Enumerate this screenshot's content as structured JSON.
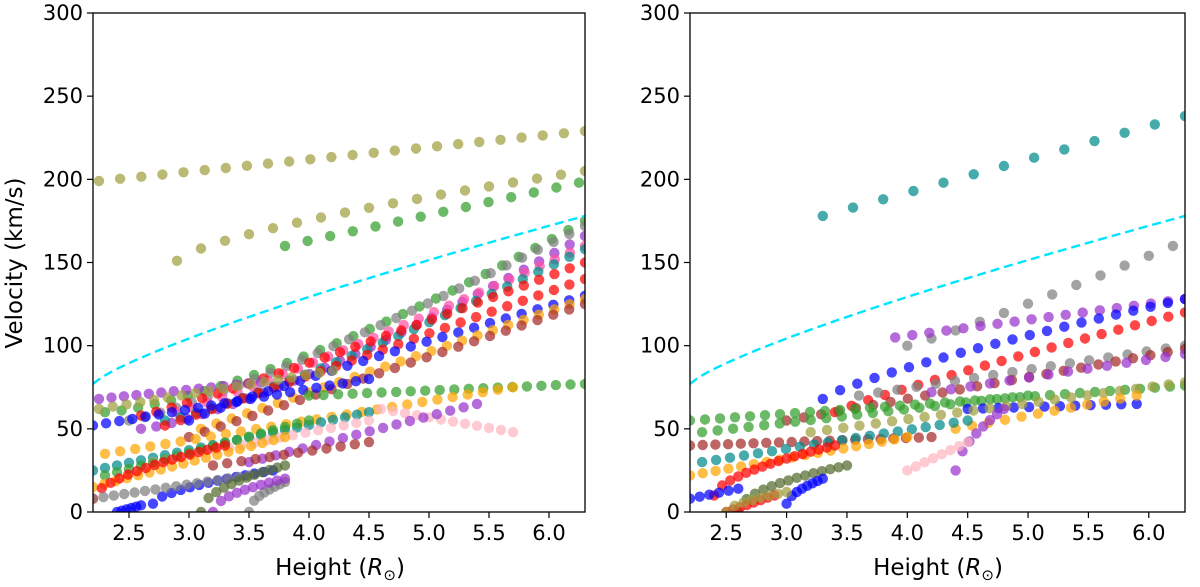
{
  "chart_data": [
    {
      "type": "scatter",
      "panel": "left",
      "xlabel_main": "Height (",
      "xlabel_symbol": "R",
      "xlabel_sub": "⊙",
      "xlabel_close": ")",
      "ylabel": "Velocity (km/s)",
      "xlim": [
        2.2,
        6.3
      ],
      "ylim": [
        0,
        300
      ],
      "xticks": [
        "2.5",
        "3.0",
        "3.5",
        "4.0",
        "4.5",
        "5.0",
        "5.5",
        "6.0"
      ],
      "xtick_values": [
        2.5,
        3.0,
        3.5,
        4.0,
        4.5,
        5.0,
        5.5,
        6.0
      ],
      "yticks": [
        "0",
        "50",
        "100",
        "150",
        "200",
        "250",
        "300"
      ],
      "ytick_values": [
        0,
        50,
        100,
        150,
        200,
        250,
        300
      ],
      "reference_curve": {
        "style": "dashed",
        "color": "#00e5ff",
        "x0": 2.2,
        "x1": 6.3,
        "y0": 77,
        "y1": 178,
        "exponent": 0.8
      },
      "series": [
        {
          "color": "#a0a040",
          "x0": 2.25,
          "x1": 6.3,
          "y0": 199,
          "y1": 229,
          "exponent": 1,
          "n": 24
        },
        {
          "color": "#a0a040",
          "x0": 2.9,
          "x1": 6.3,
          "y0": 151,
          "y1": 205,
          "exponent": 0.7,
          "n": 18
        },
        {
          "color": "#33a02c",
          "x0": 3.8,
          "x1": 6.25,
          "y0": 160,
          "y1": 198,
          "exponent": 1,
          "n": 14
        },
        {
          "color": "#33a02c",
          "x0": 2.3,
          "x1": 6.3,
          "y0": 60,
          "y1": 175,
          "exponent": 1.4,
          "n": 30
        },
        {
          "color": "#808080",
          "x0": 2.5,
          "x1": 6.3,
          "y0": 55,
          "y1": 172,
          "exponent": 1.2,
          "n": 30
        },
        {
          "color": "#9932cc",
          "x0": 2.6,
          "x1": 6.3,
          "y0": 50,
          "y1": 166,
          "exponent": 1.3,
          "n": 30
        },
        {
          "color": "#ff4da6",
          "x0": 2.9,
          "x1": 6.3,
          "y0": 60,
          "y1": 160,
          "exponent": 1.1,
          "n": 28
        },
        {
          "color": "#008b8b",
          "x0": 2.8,
          "x1": 6.3,
          "y0": 55,
          "y1": 158,
          "exponent": 1.2,
          "n": 28
        },
        {
          "color": "#ff0000",
          "x0": 2.6,
          "x1": 6.3,
          "y0": 58,
          "y1": 150,
          "exponent": 1.1,
          "n": 30
        },
        {
          "color": "#ff0000",
          "x0": 2.8,
          "x1": 6.3,
          "y0": 52,
          "y1": 140,
          "exponent": 1.0,
          "n": 28
        },
        {
          "color": "#0000ff",
          "x0": 3.0,
          "x1": 6.3,
          "y0": 55,
          "y1": 130,
          "exponent": 0.9,
          "n": 26
        },
        {
          "color": "#ffa500",
          "x0": 3.1,
          "x1": 6.3,
          "y0": 50,
          "y1": 128,
          "exponent": 1.0,
          "n": 26
        },
        {
          "color": "#a52a2a",
          "x0": 3.0,
          "x1": 6.3,
          "y0": 45,
          "y1": 125,
          "exponent": 1.0,
          "n": 26
        },
        {
          "color": "#9932cc",
          "x0": 2.25,
          "x1": 3.6,
          "y0": 68,
          "y1": 78,
          "exponent": 1,
          "n": 14
        },
        {
          "color": "#0000ff",
          "x0": 2.2,
          "x1": 4.5,
          "y0": 52,
          "y1": 80,
          "exponent": 1,
          "n": 22
        },
        {
          "color": "#a0a040",
          "x0": 2.25,
          "x1": 4.2,
          "y0": 62,
          "y1": 85,
          "exponent": 1,
          "n": 18
        },
        {
          "color": "#33a02c",
          "x0": 4.0,
          "x1": 6.3,
          "y0": 70,
          "y1": 77,
          "exponent": 1,
          "n": 20
        },
        {
          "color": "#ffa500",
          "x0": 2.3,
          "x1": 5.7,
          "y0": 35,
          "y1": 75,
          "exponent": 1,
          "n": 28
        },
        {
          "color": "#ffb6c1",
          "x0": 4.6,
          "x1": 5.7,
          "y0": 62,
          "y1": 48,
          "exponent": 1,
          "n": 12
        },
        {
          "color": "#9932cc",
          "x0": 3.5,
          "x1": 5.4,
          "y0": 30,
          "y1": 65,
          "exponent": 1,
          "n": 18
        },
        {
          "color": "#008b8b",
          "x0": 2.2,
          "x1": 4.5,
          "y0": 25,
          "y1": 60,
          "exponent": 1,
          "n": 24
        },
        {
          "color": "#ffb6c1",
          "x0": 2.7,
          "x1": 4.5,
          "y0": 30,
          "y1": 55,
          "exponent": 1,
          "n": 18
        },
        {
          "color": "#a52a2a",
          "x0": 3.2,
          "x1": 4.5,
          "y0": 28,
          "y1": 42,
          "exponent": 1,
          "n": 12
        },
        {
          "color": "#33a02c",
          "x0": 2.3,
          "x1": 4.0,
          "y0": 22,
          "y1": 55,
          "exponent": 1,
          "n": 18
        },
        {
          "color": "#ffa500",
          "x0": 2.2,
          "x1": 3.8,
          "y0": 15,
          "y1": 45,
          "exponent": 1,
          "n": 18
        },
        {
          "color": "#ff0000",
          "x0": 2.2,
          "x1": 3.3,
          "y0": 8,
          "y1": 40,
          "exponent": 0.6,
          "n": 16
        },
        {
          "color": "#0000ff",
          "x0": 2.7,
          "x1": 3.7,
          "y0": 5,
          "y1": 25,
          "exponent": 0.6,
          "n": 14
        },
        {
          "color": "#808080",
          "x0": 2.2,
          "x1": 3.5,
          "y0": 8,
          "y1": 22,
          "exponent": 1,
          "n": 16
        },
        {
          "color": "#556b2f",
          "x0": 3.1,
          "x1": 3.8,
          "y0": 0,
          "y1": 28,
          "exponent": 0.5,
          "n": 12
        },
        {
          "color": "#0000ff",
          "x0": 2.4,
          "x1": 2.6,
          "y0": 0,
          "y1": 4,
          "exponent": 1,
          "n": 6
        },
        {
          "color": "#808080",
          "x0": 3.5,
          "x1": 3.8,
          "y0": 0,
          "y1": 18,
          "exponent": 0.5,
          "n": 8
        },
        {
          "color": "#9932cc",
          "x0": 3.2,
          "x1": 3.8,
          "y0": 0,
          "y1": 20,
          "exponent": 0.5,
          "n": 10
        }
      ]
    },
    {
      "type": "scatter",
      "panel": "right",
      "xlabel_main": "Height (",
      "xlabel_symbol": "R",
      "xlabel_sub": "⊙",
      "xlabel_close": ")",
      "ylabel": "",
      "xlim": [
        2.2,
        6.3
      ],
      "ylim": [
        0,
        300
      ],
      "xticks": [
        "2.5",
        "3.0",
        "3.5",
        "4.0",
        "4.5",
        "5.0",
        "5.5",
        "6.0"
      ],
      "xtick_values": [
        2.5,
        3.0,
        3.5,
        4.0,
        4.5,
        5.0,
        5.5,
        6.0
      ],
      "yticks": [
        "0",
        "50",
        "100",
        "150",
        "200",
        "250",
        "300"
      ],
      "ytick_values": [
        0,
        50,
        100,
        150,
        200,
        250,
        300
      ],
      "reference_curve": {
        "style": "dashed",
        "color": "#00e5ff",
        "x0": 2.2,
        "x1": 6.3,
        "y0": 77,
        "y1": 178,
        "exponent": 0.8
      },
      "series": [
        {
          "color": "#008b8b",
          "x0": 3.3,
          "x1": 6.3,
          "y0": 178,
          "y1": 238,
          "exponent": 1,
          "n": 13
        },
        {
          "color": "#808080",
          "x0": 4.0,
          "x1": 6.2,
          "y0": 100,
          "y1": 160,
          "exponent": 1.1,
          "n": 12
        },
        {
          "color": "#9932cc",
          "x0": 3.9,
          "x1": 6.3,
          "y0": 105,
          "y1": 128,
          "exponent": 1,
          "n": 18
        },
        {
          "color": "#0000ff",
          "x0": 3.3,
          "x1": 6.3,
          "y0": 68,
          "y1": 128,
          "exponent": 0.8,
          "n": 22
        },
        {
          "color": "#ff0000",
          "x0": 3.4,
          "x1": 6.3,
          "y0": 60,
          "y1": 120,
          "exponent": 0.9,
          "n": 22
        },
        {
          "color": "#808080",
          "x0": 3.6,
          "x1": 6.3,
          "y0": 70,
          "y1": 100,
          "exponent": 1,
          "n": 18
        },
        {
          "color": "#a52a2a",
          "x0": 3.0,
          "x1": 6.3,
          "y0": 55,
          "y1": 98,
          "exponent": 1,
          "n": 24
        },
        {
          "color": "#9932cc",
          "x0": 4.2,
          "x1": 6.3,
          "y0": 72,
          "y1": 95,
          "exponent": 1,
          "n": 14
        },
        {
          "color": "#33a02c",
          "x0": 2.2,
          "x1": 6.3,
          "y0": 55,
          "y1": 76,
          "exponent": 1,
          "n": 34
        },
        {
          "color": "#33a02c",
          "x0": 2.3,
          "x1": 5.0,
          "y0": 48,
          "y1": 70,
          "exponent": 1,
          "n": 22
        },
        {
          "color": "#0000ff",
          "x0": 4.5,
          "x1": 5.9,
          "y0": 62,
          "y1": 65,
          "exponent": 1,
          "n": 12
        },
        {
          "color": "#a0a040",
          "x0": 3.2,
          "x1": 6.3,
          "y0": 48,
          "y1": 78,
          "exponent": 1,
          "n": 24
        },
        {
          "color": "#ffa500",
          "x0": 4.4,
          "x1": 5.9,
          "y0": 50,
          "y1": 70,
          "exponent": 1,
          "n": 12
        },
        {
          "color": "#a52a2a",
          "x0": 2.2,
          "x1": 4.2,
          "y0": 40,
          "y1": 45,
          "exponent": 1,
          "n": 20
        },
        {
          "color": "#008b8b",
          "x0": 2.3,
          "x1": 4.5,
          "y0": 30,
          "y1": 55,
          "exponent": 1,
          "n": 20
        },
        {
          "color": "#ffa500",
          "x0": 2.2,
          "x1": 4.0,
          "y0": 22,
          "y1": 45,
          "exponent": 1,
          "n": 18
        },
        {
          "color": "#ff0000",
          "x0": 2.4,
          "x1": 3.4,
          "y0": 10,
          "y1": 40,
          "exponent": 0.6,
          "n": 16
        },
        {
          "color": "#556b2f",
          "x0": 2.6,
          "x1": 3.5,
          "y0": 0,
          "y1": 28,
          "exponent": 0.5,
          "n": 14
        },
        {
          "color": "#9932cc",
          "x0": 4.4,
          "x1": 4.8,
          "y0": 25,
          "y1": 62,
          "exponent": 0.6,
          "n": 8
        },
        {
          "color": "#ffb6c1",
          "x0": 4.0,
          "x1": 4.5,
          "y0": 25,
          "y1": 42,
          "exponent": 1,
          "n": 8
        },
        {
          "color": "#0000ff",
          "x0": 2.2,
          "x1": 2.6,
          "y0": 8,
          "y1": 14,
          "exponent": 1,
          "n": 6
        },
        {
          "color": "#0000ff",
          "x0": 3.0,
          "x1": 3.3,
          "y0": 5,
          "y1": 20,
          "exponent": 0.6,
          "n": 8
        },
        {
          "color": "#ff0000",
          "x0": 2.5,
          "x1": 2.9,
          "y0": 0,
          "y1": 10,
          "exponent": 1,
          "n": 8
        },
        {
          "color": "#a0a040",
          "x0": 2.5,
          "x1": 3.0,
          "y0": 0,
          "y1": 12,
          "exponent": 0.6,
          "n": 8
        }
      ]
    }
  ]
}
